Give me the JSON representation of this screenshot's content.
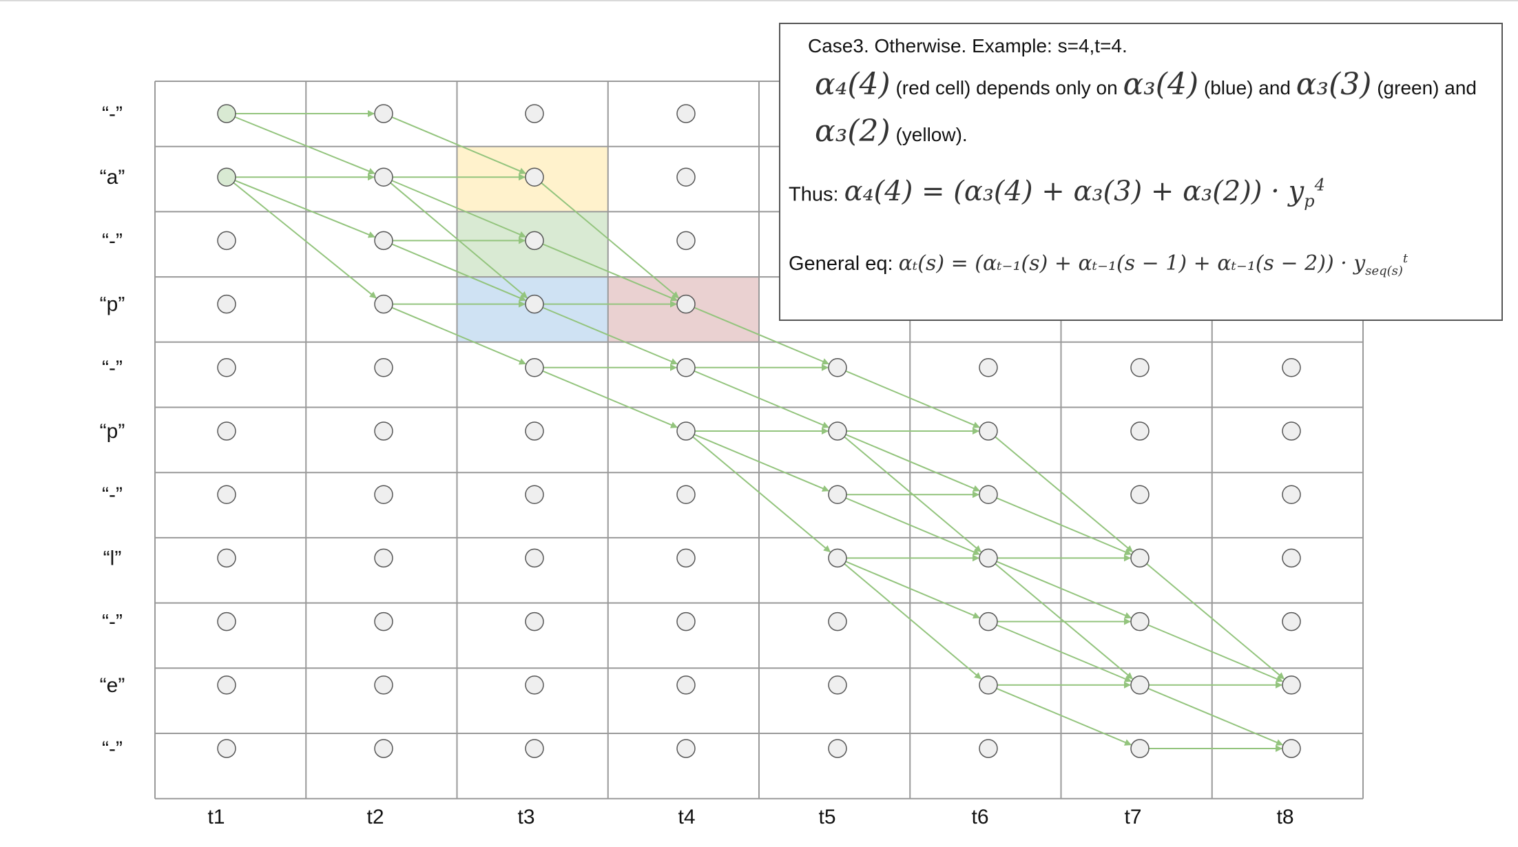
{
  "diagram": {
    "rows": [
      "“-”",
      "“a”",
      "“-”",
      "“p”",
      "“-”",
      "“p”",
      "“-”",
      "“l”",
      "“-”",
      "“e”",
      "“-”"
    ],
    "cols": [
      "t1",
      "t2",
      "t3",
      "t4",
      "t5",
      "t6",
      "t7",
      "t8"
    ],
    "colors": {
      "grid": "#999999",
      "arrow": "#93c47d",
      "node_fill": "#efefef",
      "node_start_fill": "#d9ead3",
      "node_stroke": "#555555",
      "yellow": "#fff2cc",
      "green": "#d9ead3",
      "blue": "#cfe2f3",
      "red": "#ead1d1"
    },
    "highlights": [
      {
        "row": 1,
        "col": 2,
        "color": "yellow"
      },
      {
        "row": 2,
        "col": 2,
        "color": "green"
      },
      {
        "row": 3,
        "col": 2,
        "color": "blue"
      },
      {
        "row": 3,
        "col": 3,
        "color": "red"
      }
    ],
    "start_nodes": [
      [
        0,
        0
      ],
      [
        1,
        0
      ]
    ],
    "edges": [
      [
        0,
        0,
        0,
        1
      ],
      [
        0,
        0,
        1,
        1
      ],
      [
        1,
        0,
        1,
        1
      ],
      [
        1,
        0,
        2,
        1
      ],
      [
        1,
        0,
        3,
        1
      ],
      [
        0,
        1,
        1,
        2
      ],
      [
        1,
        1,
        1,
        2
      ],
      [
        1,
        1,
        2,
        2
      ],
      [
        1,
        1,
        3,
        2
      ],
      [
        2,
        1,
        2,
        2
      ],
      [
        2,
        1,
        3,
        2
      ],
      [
        3,
        1,
        3,
        2
      ],
      [
        3,
        1,
        4,
        2
      ],
      [
        1,
        2,
        3,
        3
      ],
      [
        2,
        2,
        3,
        3
      ],
      [
        3,
        2,
        3,
        3
      ],
      [
        3,
        2,
        4,
        3
      ],
      [
        4,
        2,
        4,
        3
      ],
      [
        4,
        2,
        5,
        3
      ],
      [
        3,
        3,
        4,
        4
      ],
      [
        4,
        3,
        4,
        4
      ],
      [
        4,
        3,
        5,
        4
      ],
      [
        5,
        3,
        5,
        4
      ],
      [
        5,
        3,
        6,
        4
      ],
      [
        5,
        3,
        7,
        4
      ],
      [
        4,
        4,
        5,
        5
      ],
      [
        5,
        4,
        5,
        5
      ],
      [
        5,
        4,
        6,
        5
      ],
      [
        5,
        4,
        7,
        5
      ],
      [
        6,
        4,
        6,
        5
      ],
      [
        6,
        4,
        7,
        5
      ],
      [
        7,
        4,
        7,
        5
      ],
      [
        7,
        4,
        8,
        5
      ],
      [
        7,
        4,
        9,
        5
      ],
      [
        5,
        5,
        7,
        6
      ],
      [
        6,
        5,
        7,
        6
      ],
      [
        7,
        5,
        7,
        6
      ],
      [
        7,
        5,
        8,
        6
      ],
      [
        7,
        5,
        9,
        6
      ],
      [
        8,
        5,
        8,
        6
      ],
      [
        8,
        5,
        9,
        6
      ],
      [
        9,
        5,
        9,
        6
      ],
      [
        9,
        5,
        10,
        6
      ],
      [
        7,
        6,
        9,
        7
      ],
      [
        8,
        6,
        9,
        7
      ],
      [
        9,
        6,
        9,
        7
      ],
      [
        9,
        6,
        10,
        7
      ],
      [
        10,
        6,
        10,
        7
      ]
    ]
  },
  "note": {
    "title": "Case3. Otherwise. Example: s=4,t=4.",
    "line1": {
      "m1": "α₄(4)",
      "t1": " (red cell) depends only on ",
      "m2": "α₃(4)",
      "t2": " (blue) and ",
      "m3": "α₃(3)",
      "t3": " (green) and"
    },
    "line2": {
      "m1": "α₃(2)",
      "t1": " (yellow)."
    },
    "thus_label": "Thus:",
    "thus_eq": "α₄(4) = (α₃(4) + α₃(3) + α₃(2)) · y",
    "thus_sub": "p",
    "thus_sup": "4",
    "general_label": "General eq:",
    "general_eq": "αₜ(s) = (αₜ₋₁(s) + αₜ₋₁(s − 1) + αₜ₋₁(s − 2)) · y",
    "general_sub": "seq(s)",
    "general_sup": "t"
  }
}
